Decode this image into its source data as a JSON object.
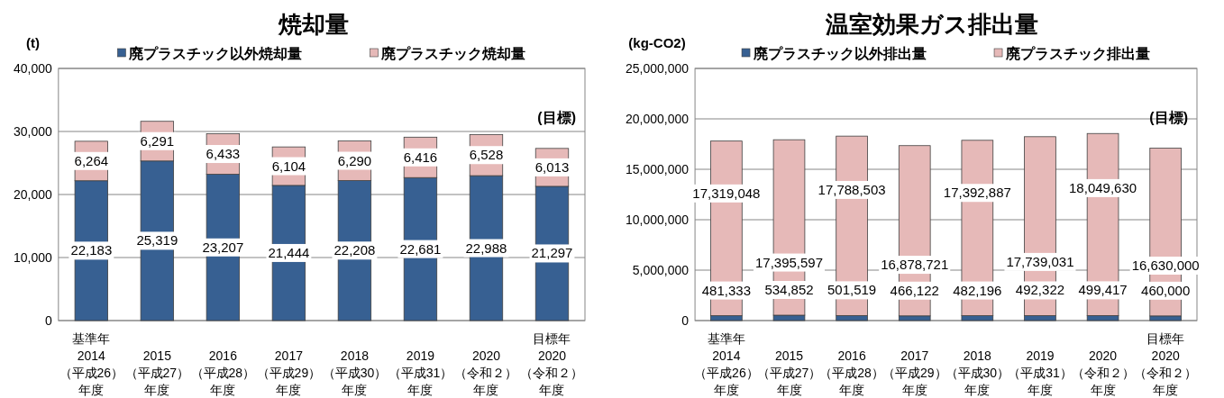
{
  "chart_data": [
    {
      "type": "bar",
      "stacked": true,
      "title": "焼却量",
      "ylabel": "(t)",
      "legend": "top",
      "grid": "y",
      "categories": [
        "基準年\n2014\n（平成26）年度",
        "2015\n（平成27）年度",
        "2016\n（平成28）年度",
        "2017\n（平成29）年度",
        "2018\n（平成30）年度",
        "2019\n（平成31）年度",
        "2020\n（令和２）年度",
        "目標年\n2020\n（令和２）年度"
      ],
      "series": [
        {
          "name": "廃プラスチック以外焼却量",
          "color": "#376092",
          "values": [
            22183,
            25319,
            23207,
            21444,
            22208,
            22681,
            22988,
            21297
          ],
          "value_labels": [
            "22,183",
            "25,319",
            "23,207",
            "21,444",
            "22,208",
            "22,681",
            "22,988",
            "21,297"
          ]
        },
        {
          "name": "廃プラスチック焼却量",
          "color": "#e6b9b8",
          "values": [
            6264,
            6291,
            6433,
            6104,
            6290,
            6416,
            6528,
            6013
          ],
          "value_labels": [
            "6,264",
            "6,291",
            "6,433",
            "6,104",
            "6,290",
            "6,416",
            "6,528",
            "6,013"
          ]
        }
      ],
      "ylim": [
        0,
        40000
      ],
      "yticks": [
        0,
        {
          "value": 10000,
          "label": "10,000"
        },
        {
          "value": 20000,
          "label": "20,000"
        },
        {
          "value": 30000,
          "label": "30,000"
        },
        {
          "value": 40000,
          "label": "40,000"
        }
      ],
      "annotations": [
        "(目標)"
      ]
    },
    {
      "type": "bar",
      "stacked": true,
      "title": "温室効果ガス排出量",
      "ylabel": "(kg-CO2)",
      "legend": "top",
      "grid": "y",
      "categories": [
        "基準年\n2014\n（平成26）年度",
        "2015\n（平成27）年度",
        "2016\n（平成28）年度",
        "2017\n（平成29）年度",
        "2018\n（平成30）年度",
        "2019\n（平成31）年度",
        "2020\n（令和２）年度",
        "目標年\n2020\n（令和２）年度"
      ],
      "series": [
        {
          "name": "廃プラスチック以外排出量",
          "color": "#376092",
          "values": [
            481333,
            534852,
            501519,
            466122,
            482196,
            492322,
            499417,
            460000
          ],
          "value_labels": [
            "481,333",
            "534,852",
            "501,519",
            "466,122",
            "482,196",
            "492,322",
            "499,417",
            "460,000"
          ]
        },
        {
          "name": "廃プラスチック排出量",
          "color": "#e6b9b8",
          "values": [
            17319048,
            17395597,
            17788503,
            16878721,
            17392887,
            17739031,
            18049630,
            16630000
          ],
          "value_labels": [
            "17,319,048",
            "17,395,597",
            "17,788,503",
            "16,878,721",
            "17,392,887",
            "17,739,031",
            "18,049,630",
            "16,630,000"
          ]
        }
      ],
      "ylim": [
        0,
        25000000
      ],
      "yticks": [
        0,
        {
          "value": 5000000,
          "label": "5,000,000"
        },
        {
          "value": 10000000,
          "label": "10,000,000"
        },
        {
          "value": 15000000,
          "label": "15,000,000"
        },
        {
          "value": 20000000,
          "label": "20,000,000"
        },
        {
          "value": 25000000,
          "label": "25,000,000"
        }
      ],
      "annotations": [
        "(目標)"
      ]
    }
  ]
}
